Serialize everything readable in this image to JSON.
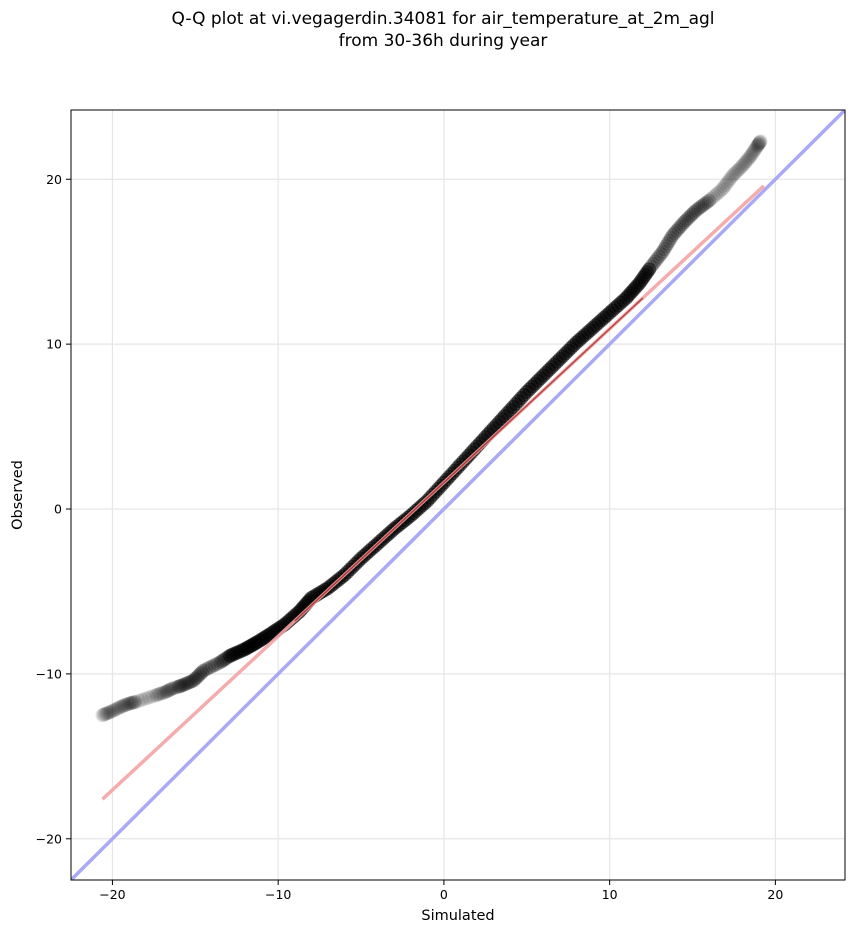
{
  "chart_data": {
    "type": "scatter",
    "title_line1": "Q-Q plot at vi.vegagerdin.34081 for air_temperature_at_2m_agl",
    "title_line2": "from 30-36h during year",
    "xlabel": "Simulated",
    "ylabel": "Observed",
    "xlim": [
      -22.5,
      24.2
    ],
    "ylim": [
      -22.5,
      24.2
    ],
    "xticks": [
      -20,
      -10,
      0,
      10,
      20
    ],
    "yticks": [
      -20,
      -10,
      0,
      10,
      20
    ],
    "xtick_labels": [
      "−20",
      "−10",
      "0",
      "10",
      "20"
    ],
    "ytick_labels": [
      "−20",
      "−10",
      "0",
      "10",
      "20"
    ],
    "grid": true,
    "quantiles": {
      "x": [
        -20.6,
        -20.1,
        -19.5,
        -19.0,
        -18.6,
        -17.4,
        -16.8,
        -16.4,
        -15.8,
        -15.1,
        -14.5,
        -13.5,
        -12.9,
        -12.0,
        -11.3,
        -10.5,
        -9.6,
        -8.7,
        -8.0,
        -7.0,
        -6.0,
        -5.0,
        -4.0,
        -3.0,
        -2.0,
        -1.0,
        0.0,
        1.0,
        2.0,
        3.0,
        4.0,
        5.0,
        6.0,
        7.0,
        8.0,
        9.0,
        10.0,
        11.0,
        11.8,
        12.5,
        13.2,
        13.8,
        14.5,
        15.2,
        16.0,
        16.8,
        17.4,
        18.0,
        18.5,
        18.9,
        19.1
      ],
      "y": [
        -12.5,
        -12.3,
        -12.0,
        -11.8,
        -11.7,
        -11.3,
        -11.1,
        -10.9,
        -10.7,
        -10.4,
        -9.8,
        -9.3,
        -8.9,
        -8.5,
        -8.1,
        -7.6,
        -7.0,
        -6.2,
        -5.4,
        -4.8,
        -4.0,
        -3.0,
        -2.1,
        -1.2,
        -0.4,
        0.5,
        1.6,
        2.7,
        3.8,
        4.9,
        6.0,
        7.1,
        8.1,
        9.1,
        10.1,
        11.0,
        11.9,
        12.8,
        13.7,
        14.7,
        15.6,
        16.6,
        17.4,
        18.1,
        18.7,
        19.4,
        20.2,
        20.8,
        21.4,
        22.0,
        22.3
      ]
    },
    "fit_line": {
      "x": [
        -20.6,
        19.3
      ],
      "y": [
        -17.6,
        19.6
      ],
      "color": "#f4a3a3"
    },
    "identity_line": {
      "color": "#a9a9f5"
    },
    "point_color": "#000000",
    "fit_overlay_color": "#8b0000"
  }
}
